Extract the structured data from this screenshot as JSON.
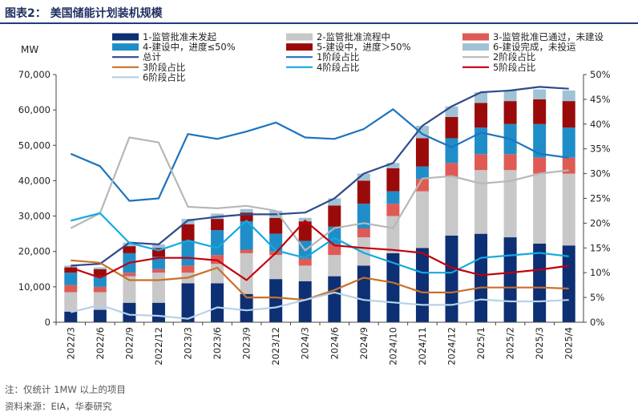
{
  "figure": {
    "title": "图表2： 美国储能计划装机规模",
    "notes": [
      "注：仅统计 1MW 以上的项目",
      "资料来源：EIA，华泰研究"
    ]
  },
  "chart_data": {
    "type": "bar",
    "stacked": true,
    "ylabel": "MW",
    "ylim": [
      0,
      70000
    ],
    "y_ticks": [
      "0",
      "10,000",
      "20,000",
      "30,000",
      "40,000",
      "50,000",
      "60,000",
      "70,000"
    ],
    "y2lim": [
      0,
      50
    ],
    "y2_ticks": [
      "0%",
      "5%",
      "10%",
      "15%",
      "20%",
      "25%",
      "30%",
      "35%",
      "40%",
      "45%",
      "50%"
    ],
    "categories": [
      "2022/3",
      "2022/6",
      "2022/9",
      "2022/12",
      "2023/3",
      "2023/6",
      "2023/9",
      "2023/12",
      "2024/3",
      "2024/6",
      "2024/9",
      "2024/10",
      "2024/11",
      "2024/12",
      "2025/1",
      "2025/2",
      "2025/3",
      "2025/4"
    ],
    "bar_series": [
      {
        "name": "1-监管批准未发起",
        "color": "#0d2f74",
        "values": [
          3000,
          3500,
          5500,
          5500,
          11000,
          11000,
          8000,
          12200,
          11600,
          13000,
          16000,
          19500,
          21000,
          24500,
          25000,
          24000,
          22200,
          21700
        ]
      },
      {
        "name": "2-监管批准流程中",
        "color": "#c8c8c8",
        "values": [
          5500,
          5000,
          7500,
          8500,
          3000,
          5500,
          11500,
          6800,
          4400,
          6000,
          8000,
          10500,
          16000,
          16500,
          18000,
          19000,
          19800,
          20300
        ]
      },
      {
        "name": "3-监管批准已通过，未建设",
        "color": "#e05a55",
        "values": [
          2000,
          1500,
          1000,
          1000,
          2000,
          2500,
          1000,
          1000,
          2000,
          3000,
          2500,
          3500,
          3500,
          4000,
          4500,
          4500,
          4500,
          4500
        ]
      },
      {
        "name": "4-建设中，进度≤50%",
        "color": "#1f8ec8",
        "values": [
          3500,
          3000,
          5500,
          3500,
          7000,
          7000,
          8000,
          5000,
          5000,
          5000,
          7000,
          3500,
          3500,
          7000,
          7500,
          8500,
          9500,
          8500
        ]
      },
      {
        "name": "5-建设中，进度＞50%",
        "color": "#9b0a0a",
        "values": [
          1500,
          2000,
          2000,
          2500,
          4700,
          3200,
          2500,
          4500,
          5500,
          6000,
          6500,
          6500,
          8000,
          6000,
          7000,
          6500,
          7000,
          7500
        ]
      },
      {
        "name": "6-建设完成，未投运",
        "color": "#9fc2d4",
        "values": [
          500,
          500,
          1000,
          1000,
          1500,
          1500,
          1000,
          2000,
          1000,
          2000,
          2000,
          1500,
          3500,
          3000,
          3000,
          3000,
          2800,
          3000
        ]
      }
    ],
    "line_series": [
      {
        "name": "总计",
        "axis": "left",
        "color": "#2e4a8c",
        "values": [
          16000,
          16500,
          22500,
          22000,
          28800,
          29800,
          30500,
          30500,
          31000,
          35000,
          42000,
          45000,
          55500,
          61000,
          65000,
          65500,
          66500,
          66000
        ]
      },
      {
        "name": "1阶段占比",
        "axis": "right",
        "color": "#1c73bf",
        "values": [
          34,
          31.5,
          24.5,
          25,
          38,
          37,
          38.5,
          40.3,
          37.3,
          37,
          39,
          43,
          38,
          35.3,
          38.3,
          37,
          34,
          33.2
        ]
      },
      {
        "name": "2阶段占比",
        "axis": "right",
        "color": "#b7b7b7",
        "values": [
          19,
          22,
          37.3,
          36.3,
          23.3,
          23,
          23.5,
          22.5,
          14.5,
          19,
          20,
          19,
          29,
          29.5,
          28,
          28.5,
          30,
          30.7
        ]
      },
      {
        "name": "3阶段占比",
        "axis": "right",
        "color": "#c8702a",
        "values": [
          12.5,
          12,
          8.5,
          8.5,
          9,
          11,
          5,
          5,
          4.5,
          6.5,
          9,
          8,
          6,
          6,
          7,
          7,
          7,
          6.8
        ]
      },
      {
        "name": "4阶段占比",
        "axis": "right",
        "color": "#14a9e1",
        "values": [
          20.5,
          22,
          16,
          14.5,
          16.5,
          15,
          20.5,
          14.5,
          13,
          17,
          14,
          12,
          10,
          10,
          13,
          13.5,
          14,
          13.3
        ]
      },
      {
        "name": "5阶段占比",
        "axis": "right",
        "color": "#c0000b",
        "values": [
          11,
          9,
          12,
          13,
          13,
          12.5,
          8.5,
          14,
          20.5,
          15.5,
          15,
          14.6,
          14,
          11,
          9.5,
          10,
          10.6,
          11.4
        ]
      },
      {
        "name": "6阶段占比",
        "axis": "right",
        "color": "#b6d2e8",
        "values": [
          2,
          3.5,
          1.5,
          1.3,
          0.7,
          3,
          2.4,
          3,
          4.5,
          6,
          4.5,
          4,
          3.5,
          3.5,
          4.6,
          4.2,
          4.2,
          4.5
        ]
      }
    ]
  }
}
